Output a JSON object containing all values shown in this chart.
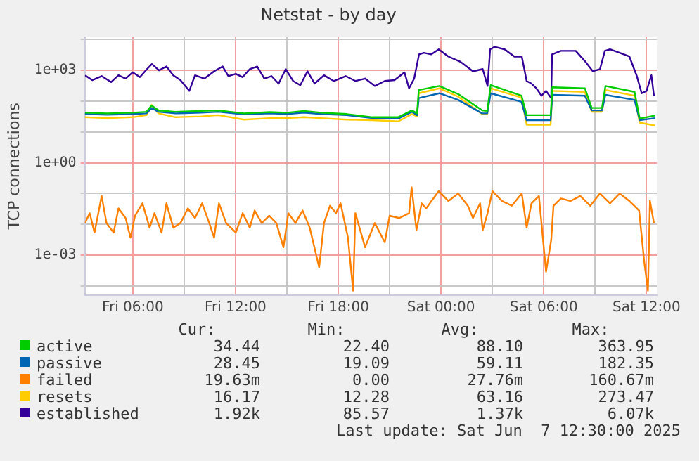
{
  "chart_data": {
    "type": "line",
    "title": "Netstat - by day",
    "ylabel": "TCP connections",
    "log": true,
    "grid": true,
    "legend": "bottom",
    "marker": "none",
    "line_style": "solid",
    "xlim": [
      "2025-06-06T03:12",
      "2025-06-07T12:36"
    ],
    "xticks": [
      {
        "value": "2025-06-06T06:00",
        "label": "Fri 06:00"
      },
      {
        "value": "2025-06-06T09:00",
        "label": null
      },
      {
        "value": "2025-06-06T12:00",
        "label": "Fri 12:00"
      },
      {
        "value": "2025-06-06T15:00",
        "label": null
      },
      {
        "value": "2025-06-06T18:00",
        "label": "Fri 18:00"
      },
      {
        "value": "2025-06-06T21:00",
        "label": null
      },
      {
        "value": "2025-06-07T00:00",
        "label": "Sat 00:00"
      },
      {
        "value": "2025-06-07T03:00",
        "label": null
      },
      {
        "value": "2025-06-07T06:00",
        "label": "Sat 06:00"
      },
      {
        "value": "2025-06-07T09:00",
        "label": null
      },
      {
        "value": "2025-06-07T12:00",
        "label": "Sat 12:00"
      }
    ],
    "ylim": [
      5e-05,
      12000
    ],
    "yticks": [
      {
        "value": 0.0001,
        "label": null
      },
      {
        "value": 0.001,
        "label": "1e-03"
      },
      {
        "value": 0.01,
        "label": null
      },
      {
        "value": 0.1,
        "label": null
      },
      {
        "value": 1,
        "label": "1e+00"
      },
      {
        "value": 10,
        "label": null
      },
      {
        "value": 100,
        "label": null
      },
      {
        "value": 1000,
        "label": "1e+03"
      },
      {
        "value": 10000,
        "label": null
      }
    ],
    "x": [
      "2025-06-06T03:12",
      "2025-06-06T04:30",
      "2025-06-06T06:00",
      "2025-06-06T06:48",
      "2025-06-06T07:06",
      "2025-06-06T07:30",
      "2025-06-06T08:30",
      "2025-06-06T10:00",
      "2025-06-06T11:00",
      "2025-06-06T12:30",
      "2025-06-06T14:00",
      "2025-06-06T15:00",
      "2025-06-06T16:00",
      "2025-06-06T17:00",
      "2025-06-06T18:30",
      "2025-06-06T20:00",
      "2025-06-06T21:30",
      "2025-06-06T22:18",
      "2025-06-06T22:36",
      "2025-06-06T22:42",
      "2025-06-06T23:54",
      "2025-06-07T01:00",
      "2025-06-07T02:24",
      "2025-06-07T02:42",
      "2025-06-07T02:54",
      "2025-06-07T04:42",
      "2025-06-07T05:00",
      "2025-06-07T06:24",
      "2025-06-07T06:30",
      "2025-06-07T08:24",
      "2025-06-07T08:48",
      "2025-06-07T09:24",
      "2025-06-07T09:36",
      "2025-06-07T11:18",
      "2025-06-07T11:36",
      "2025-06-07T12:30"
    ],
    "series": [
      {
        "name": "active",
        "color": "#00cc00",
        "values": [
          42,
          40,
          42,
          45,
          72,
          50,
          45,
          48,
          50,
          40,
          44,
          42,
          48,
          42,
          38,
          30,
          30,
          50,
          40,
          230,
          310,
          170,
          50,
          48,
          330,
          150,
          35,
          35,
          280,
          260,
          60,
          60,
          310,
          200,
          27,
          34
        ]
      },
      {
        "name": "passive",
        "color": "#0066b3",
        "values": [
          38,
          36,
          38,
          40,
          60,
          45,
          40,
          42,
          45,
          37,
          40,
          38,
          42,
          38,
          35,
          28,
          27,
          45,
          35,
          125,
          180,
          110,
          40,
          40,
          180,
          95,
          24,
          24,
          160,
          150,
          50,
          50,
          160,
          110,
          24,
          28
        ]
      },
      {
        "name": "failed",
        "color": "#ff8000",
        "x": [
          "2025-06-06T03:13",
          "2025-06-06T03:29",
          "2025-06-06T03:46",
          "2025-06-06T04:11",
          "2025-06-06T04:28",
          "2025-06-06T04:53",
          "2025-06-06T05:10",
          "2025-06-06T05:35",
          "2025-06-06T05:52",
          "2025-06-06T06:08",
          "2025-06-06T06:34",
          "2025-06-06T06:59",
          "2025-06-06T07:16",
          "2025-06-06T07:41",
          "2025-06-06T07:58",
          "2025-06-06T08:22",
          "2025-06-06T08:47",
          "2025-06-06T09:13",
          "2025-06-06T09:38",
          "2025-06-06T10:03",
          "2025-06-06T10:28",
          "2025-06-06T10:45",
          "2025-06-06T11:02",
          "2025-06-06T11:27",
          "2025-06-06T12:01",
          "2025-06-06T12:25",
          "2025-06-06T12:50",
          "2025-06-06T13:07",
          "2025-06-06T13:32",
          "2025-06-06T13:58",
          "2025-06-06T14:23",
          "2025-06-06T14:48",
          "2025-06-06T15:05",
          "2025-06-06T15:30",
          "2025-06-06T15:55",
          "2025-06-06T16:20",
          "2025-06-06T16:53",
          "2025-06-06T17:10",
          "2025-06-06T17:31",
          "2025-06-06T17:52",
          "2025-06-06T18:08",
          "2025-06-06T18:34",
          "2025-06-06T18:52",
          "2025-06-06T19:00",
          "2025-06-06T19:34",
          "2025-06-06T20:08",
          "2025-06-06T20:43",
          "2025-06-06T21:00",
          "2025-06-06T21:34",
          "2025-06-06T22:08",
          "2025-06-06T22:17",
          "2025-06-06T22:34",
          "2025-06-06T22:52",
          "2025-06-06T23:08",
          "2025-06-06T23:52",
          "2025-06-07T00:26",
          "2025-06-07T01:00",
          "2025-06-07T01:34",
          "2025-06-07T01:52",
          "2025-06-07T02:17",
          "2025-06-07T02:26",
          "2025-06-07T02:43",
          "2025-06-07T03:00",
          "2025-06-07T03:34",
          "2025-06-07T04:08",
          "2025-06-07T04:43",
          "2025-06-07T05:00",
          "2025-06-07T05:17",
          "2025-06-07T05:43",
          "2025-06-07T06:08",
          "2025-06-07T06:26",
          "2025-06-07T06:34",
          "2025-06-07T07:00",
          "2025-06-07T07:34",
          "2025-06-07T08:08",
          "2025-06-07T08:43",
          "2025-06-07T09:17",
          "2025-06-07T09:52",
          "2025-06-07T10:26",
          "2025-06-07T11:00",
          "2025-06-07T11:34",
          "2025-06-07T11:52",
          "2025-06-07T12:05",
          "2025-06-07T12:12",
          "2025-06-07T12:26"
        ],
        "values": [
          0.011,
          0.023,
          0.0054,
          0.083,
          0.011,
          0.0054,
          0.033,
          0.016,
          0.0037,
          0.019,
          0.048,
          0.0078,
          0.023,
          0.0054,
          0.048,
          0.0078,
          0.011,
          0.033,
          0.016,
          0.048,
          0.011,
          0.0037,
          0.048,
          0.011,
          0.0054,
          0.023,
          0.0078,
          0.028,
          0.011,
          0.019,
          0.011,
          0.0018,
          0.023,
          0.011,
          0.028,
          0.0078,
          0.0004,
          0.011,
          0.04,
          0.023,
          0.048,
          0.0037,
          7e-05,
          0.023,
          0.0018,
          0.011,
          0.0026,
          0.019,
          0.016,
          0.023,
          0.16,
          0.0065,
          0.048,
          0.033,
          0.12,
          0.057,
          0.1,
          0.04,
          0.016,
          0.048,
          0.0065,
          0.023,
          0.12,
          0.057,
          0.04,
          0.1,
          0.0078,
          0.048,
          0.083,
          0.00029,
          0.0031,
          0.04,
          0.069,
          0.057,
          0.083,
          0.04,
          0.1,
          0.048,
          0.1,
          0.057,
          0.028,
          0.0006,
          7e-05,
          0.057,
          0.011
        ]
      },
      {
        "name": "resets",
        "color": "#ffcc00",
        "values": [
          30,
          28,
          30,
          35,
          75,
          40,
          30,
          32,
          35,
          25,
          28,
          28,
          30,
          28,
          25,
          24,
          22,
          38,
          32,
          180,
          260,
          140,
          38,
          38,
          260,
          130,
          17,
          17,
          215,
          200,
          45,
          45,
          230,
          150,
          20,
          16
        ]
      },
      {
        "name": "established",
        "color": "#330099",
        "x": [
          "2025-06-06T03:13",
          "2025-06-06T03:38",
          "2025-06-06T04:11",
          "2025-06-06T04:44",
          "2025-06-06T05:10",
          "2025-06-06T05:35",
          "2025-06-06T06:00",
          "2025-06-06T06:25",
          "2025-06-06T06:50",
          "2025-06-06T07:07",
          "2025-06-06T07:32",
          "2025-06-06T07:58",
          "2025-06-06T08:22",
          "2025-06-06T08:47",
          "2025-06-06T09:18",
          "2025-06-06T09:38",
          "2025-06-06T10:11",
          "2025-06-06T10:45",
          "2025-06-06T11:15",
          "2025-06-06T11:35",
          "2025-06-06T12:01",
          "2025-06-06T12:25",
          "2025-06-06T12:50",
          "2025-06-06T13:16",
          "2025-06-06T13:41",
          "2025-06-06T14:06",
          "2025-06-06T14:31",
          "2025-06-06T14:56",
          "2025-06-06T15:22",
          "2025-06-06T15:47",
          "2025-06-06T16:12",
          "2025-06-06T16:37",
          "2025-06-06T17:10",
          "2025-06-06T17:44",
          "2025-06-06T18:26",
          "2025-06-06T19:00",
          "2025-06-06T19:34",
          "2025-06-06T20:08",
          "2025-06-06T20:43",
          "2025-06-06T21:17",
          "2025-06-06T21:52",
          "2025-06-06T22:08",
          "2025-06-06T22:26",
          "2025-06-06T22:43",
          "2025-06-06T23:00",
          "2025-06-06T23:26",
          "2025-06-06T23:52",
          "2025-06-07T00:26",
          "2025-06-07T01:08",
          "2025-06-07T01:52",
          "2025-06-07T02:26",
          "2025-06-07T02:43",
          "2025-06-07T02:52",
          "2025-06-07T03:08",
          "2025-06-07T03:43",
          "2025-06-07T04:17",
          "2025-06-07T04:43",
          "2025-06-07T05:00",
          "2025-06-07T05:17",
          "2025-06-07T05:34",
          "2025-06-07T05:52",
          "2025-06-07T06:08",
          "2025-06-07T06:26",
          "2025-06-07T06:29",
          "2025-06-07T07:00",
          "2025-06-07T07:52",
          "2025-06-07T08:26",
          "2025-06-07T08:52",
          "2025-06-07T09:17",
          "2025-06-07T09:34",
          "2025-06-07T09:52",
          "2025-06-07T10:26",
          "2025-06-07T11:00",
          "2025-06-07T11:26",
          "2025-06-07T11:43",
          "2025-06-07T12:00",
          "2025-06-07T12:17",
          "2025-06-07T12:26"
        ],
        "values": [
          690,
          480,
          650,
          415,
          690,
          540,
          860,
          600,
          1100,
          1600,
          1000,
          1340,
          690,
          480,
          215,
          690,
          540,
          930,
          1340,
          650,
          770,
          600,
          1100,
          1340,
          540,
          650,
          370,
          1100,
          450,
          330,
          930,
          370,
          690,
          450,
          650,
          450,
          540,
          310,
          450,
          480,
          860,
          260,
          540,
          3300,
          3700,
          3300,
          4800,
          2800,
          1900,
          930,
          1100,
          310,
          4800,
          5800,
          4800,
          2800,
          2800,
          450,
          370,
          260,
          150,
          215,
          125,
          3300,
          4300,
          4300,
          1900,
          930,
          1100,
          4300,
          4800,
          3700,
          2800,
          650,
          180,
          215,
          690,
          150
        ]
      }
    ],
    "annotations": [
      "Cur:",
      "Min:",
      "Avg:",
      "Max:",
      "34.44",
      "22.40",
      "88.10",
      "363.95",
      "28.45",
      "19.09",
      "59.11",
      "182.35",
      "19.63m",
      "0.00",
      "27.76m",
      "160.67m",
      "16.17",
      "12.28",
      "63.16",
      "273.47",
      "1.92k",
      "85.57",
      "1.37k",
      "6.07k",
      "Last update: Sat Jun  7 12:30:00 2025"
    ]
  }
}
